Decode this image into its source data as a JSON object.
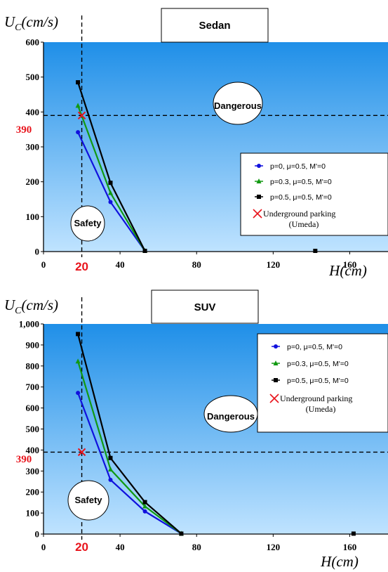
{
  "chart_data": [
    {
      "type": "line",
      "title": "Sedan",
      "ylabel": "U_C(cm/s)",
      "xlabel": "H(cm)",
      "xlim": [
        0,
        180
      ],
      "ylim": [
        0,
        600
      ],
      "xticks": [
        "0",
        "40",
        "80",
        "120",
        "160"
      ],
      "yticks": [
        "0",
        "100",
        "200",
        "300",
        "400",
        "500",
        "600"
      ],
      "annotations": {
        "dangerous": "Dangerous",
        "safety": "Safety",
        "y_ref_label": "390",
        "x_ref_label": "20"
      },
      "ref_lines": {
        "x": 20,
        "y": 390
      },
      "series": [
        {
          "name": "p=0, μ=0.5, M'=0",
          "color": "#1111dd",
          "marker": "circle",
          "x": [
            18,
            35,
            53
          ],
          "y": [
            342,
            142,
            2
          ]
        },
        {
          "name": "p=0.3, μ=0.5, M'=0",
          "color": "#119911",
          "marker": "triangle",
          "x": [
            18,
            35,
            53
          ],
          "y": [
            418,
            168,
            2
          ]
        },
        {
          "name": "p=0.5, μ=0.5, M'=0",
          "color": "#000000",
          "marker": "square",
          "x": [
            18,
            35,
            53
          ],
          "y": [
            485,
            197,
            2
          ]
        }
      ],
      "extra_points": [
        {
          "x": 142,
          "y": 2,
          "marker": "square",
          "color": "#000000"
        }
      ],
      "underground": {
        "name": "Underground parking",
        "sub": "(Umeda)",
        "x": 20,
        "y": 390
      }
    },
    {
      "type": "line",
      "title": "SUV",
      "ylabel": "U_C(cm/s)",
      "xlabel": "H(cm)",
      "xlim": [
        0,
        180
      ],
      "ylim": [
        0,
        1000
      ],
      "xticks": [
        "0",
        "40",
        "80",
        "120",
        "160"
      ],
      "yticks": [
        "0",
        "100",
        "200",
        "300",
        "400",
        "500",
        "600",
        "700",
        "800",
        "900",
        "1,000"
      ],
      "annotations": {
        "dangerous": "Dangerous",
        "safety": "Safety",
        "y_ref_label": "390",
        "x_ref_label": "20"
      },
      "ref_lines": {
        "x": 20,
        "y": 390
      },
      "series": [
        {
          "name": "p=0, μ=0.5, M'=0",
          "color": "#1111dd",
          "marker": "circle",
          "x": [
            18,
            35,
            53,
            72
          ],
          "y": [
            672,
            258,
            108,
            2
          ]
        },
        {
          "name": "p=0.3, μ=0.5, M'=0",
          "color": "#119911",
          "marker": "triangle",
          "x": [
            18,
            35,
            53,
            72
          ],
          "y": [
            822,
            308,
            132,
            2
          ]
        },
        {
          "name": "p=0.5, μ=0.5, M'=0",
          "color": "#000000",
          "marker": "square",
          "x": [
            18,
            35,
            53,
            72
          ],
          "y": [
            952,
            362,
            152,
            2
          ]
        }
      ],
      "extra_points": [
        {
          "x": 162,
          "y": 2,
          "marker": "square",
          "color": "#000000"
        }
      ],
      "underground": {
        "name": "Underground parking",
        "sub": "(Umeda)",
        "x": 20,
        "y": 390
      }
    }
  ],
  "colors": {
    "plot_top": "#1f8fe8",
    "plot_bottom": "#bfe3ff",
    "ref_mark": "#e8141c"
  }
}
